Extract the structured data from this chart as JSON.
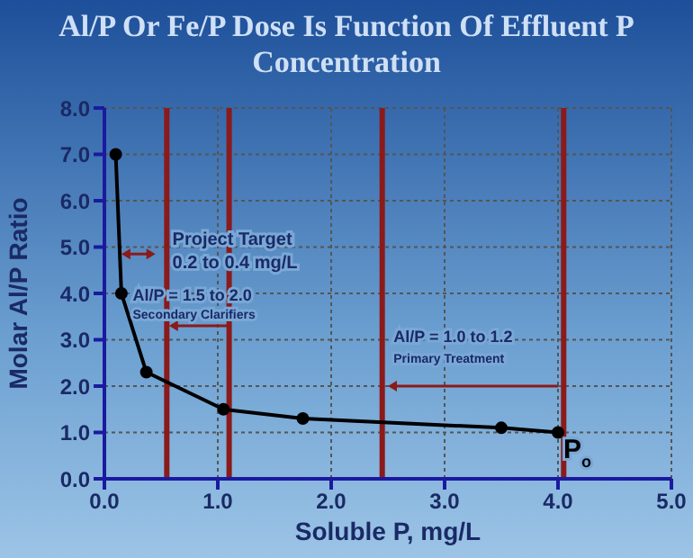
{
  "chart_data": {
    "type": "line",
    "title": "Al/P Or Fe/P Dose Is Function Of Effluent P Concentration",
    "xlabel": "Soluble P, mg/L",
    "ylabel": "Molar Al/P Ratio",
    "x": [
      0.1,
      0.15,
      0.37,
      1.05,
      1.75,
      3.5,
      4.0
    ],
    "series": [
      {
        "color": "#000000",
        "values": [
          7.0,
          4.0,
          2.3,
          1.5,
          1.3,
          1.1,
          1.0
        ]
      }
    ],
    "xlim": [
      0,
      5
    ],
    "xticks": [
      {
        "value": 0,
        "label": "0.0"
      },
      {
        "value": 1,
        "label": "1.0"
      },
      {
        "value": 2,
        "label": "2.0"
      },
      {
        "value": 3,
        "label": "3.0"
      },
      {
        "value": 4,
        "label": "4.0"
      },
      {
        "value": 5,
        "label": "5.0"
      }
    ],
    "ylim": [
      0,
      8
    ],
    "yticks": [
      {
        "value": 0,
        "label": "0.0"
      },
      {
        "value": 1,
        "label": "1.0"
      },
      {
        "value": 2,
        "label": "2.0"
      },
      {
        "value": 3,
        "label": "3.0"
      },
      {
        "value": 4,
        "label": "4.0"
      },
      {
        "value": 5,
        "label": "5.0"
      },
      {
        "value": 6,
        "label": "6.0"
      },
      {
        "value": 7,
        "label": "7.0"
      },
      {
        "value": 8,
        "label": "8.0"
      }
    ],
    "grid": true,
    "marker": "circle",
    "line_style": "solid",
    "ref_lines": [
      {
        "axis": "x",
        "value": 0.55,
        "color": "#8b1a1a"
      },
      {
        "axis": "x",
        "value": 1.1,
        "color": "#8b1a1a"
      },
      {
        "axis": "x",
        "value": 2.45,
        "color": "#8b1a1a"
      },
      {
        "axis": "x",
        "value": 4.05,
        "color": "#8b1a1a"
      }
    ],
    "annotations": [
      "Project Target",
      "0.2 to 0.4 mg/L",
      "Al/P = 1.5 to 2.0",
      "Secondary Clarifiers",
      "Al/P = 1.0 to 1.2",
      "Primary Treatment",
      {
        "text": "P$_{o}$",
        "x": 4.0,
        "y": 1.0
      }
    ]
  }
}
